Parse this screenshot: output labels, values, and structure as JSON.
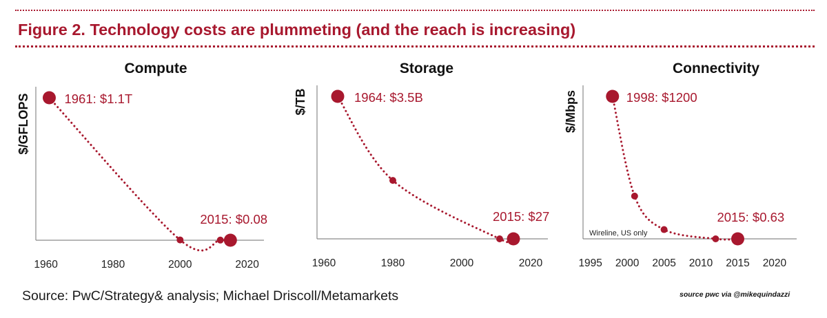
{
  "figure": {
    "title": "Figure 2. Technology costs are plummeting (and the reach is increasing)",
    "source": "Source: PwC/Strategy& analysis; Michael Driscoll/Metamarkets",
    "credit": "source pwc via @mikequindazzi",
    "accent_color": "#a8182e"
  },
  "chart_data": [
    {
      "type": "line",
      "title": "Compute",
      "ylabel": "$/GFLOPS",
      "xlabel": "",
      "xlim": [
        1957,
        2025
      ],
      "ylim": [
        0,
        1
      ],
      "y_note": "normalized relative cost (no y tick labels shown)",
      "x_ticks": [
        1960,
        1980,
        2000,
        2020
      ],
      "points": [
        {
          "x": 1961,
          "y": 1.0,
          "size": "large",
          "label": "1961: $1.1T"
        },
        {
          "x": 2000,
          "y": 0.002,
          "size": "small"
        },
        {
          "x": 2012,
          "y": 0.001,
          "size": "small"
        },
        {
          "x": 2015,
          "y": 0.0,
          "size": "large",
          "label": "2015: $0.08"
        }
      ]
    },
    {
      "type": "line",
      "title": "Storage",
      "ylabel": "$/TB",
      "xlabel": "",
      "xlim": [
        1958,
        2025
      ],
      "ylim": [
        0,
        1
      ],
      "y_note": "normalized relative cost (no y tick labels shown)",
      "x_ticks": [
        1960,
        1980,
        2000,
        2020
      ],
      "points": [
        {
          "x": 1964,
          "y": 1.0,
          "size": "large",
          "label": "1964: $3.5B"
        },
        {
          "x": 1980,
          "y": 0.41,
          "size": "small"
        },
        {
          "x": 2011,
          "y": 0.0,
          "size": "small"
        },
        {
          "x": 2015,
          "y": 0.0,
          "size": "large",
          "label": "2015: $27"
        }
      ]
    },
    {
      "type": "line",
      "title": "Connectivity",
      "ylabel": "$/Mbps",
      "xlabel": "",
      "xlim": [
        1994,
        2023
      ],
      "ylim": [
        0,
        1
      ],
      "y_note": "normalized relative cost (no y tick labels shown)",
      "x_ticks": [
        1995,
        2000,
        2005,
        2010,
        2015,
        2020
      ],
      "annotation": "Wireline, US only",
      "points": [
        {
          "x": 1998,
          "y": 1.0,
          "size": "large",
          "label": "1998: $1200"
        },
        {
          "x": 2001,
          "y": 0.3,
          "size": "small"
        },
        {
          "x": 2005,
          "y": 0.065,
          "size": "small"
        },
        {
          "x": 2012,
          "y": 0.0,
          "size": "small"
        },
        {
          "x": 2015,
          "y": 0.0,
          "size": "large",
          "label": "2015: $0.63"
        }
      ]
    }
  ]
}
